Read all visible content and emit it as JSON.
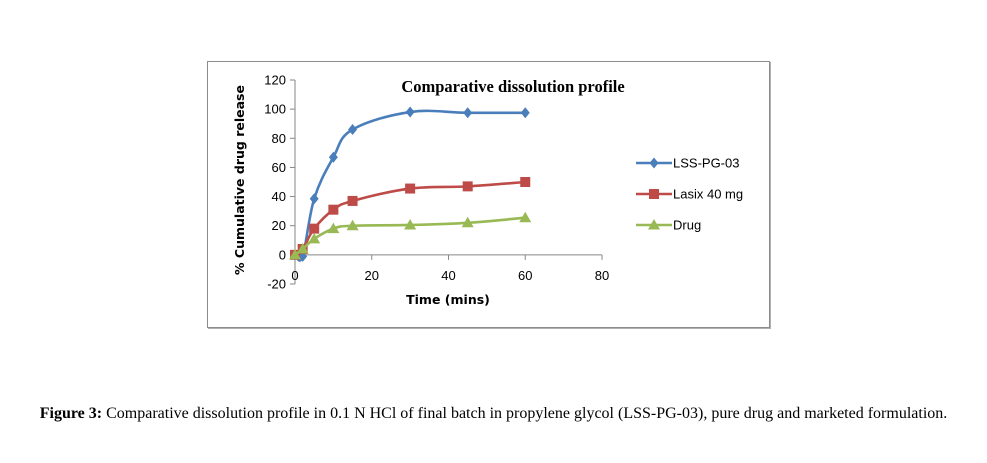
{
  "chart_data": {
    "type": "line",
    "title": "Comparative dissolution profile",
    "xlabel": "Time (mins)",
    "ylabel": "% Cumulative drug release",
    "xlim": [
      0,
      80
    ],
    "ylim": [
      -20,
      120
    ],
    "xticks": [
      0,
      20,
      40,
      60,
      80
    ],
    "yticks": [
      -20,
      0,
      20,
      40,
      60,
      80,
      100,
      120
    ],
    "grid": false,
    "legend_position": "right",
    "x": [
      0,
      2,
      5,
      10,
      15,
      30,
      45,
      60
    ],
    "series": [
      {
        "name": "LSS-PG-03",
        "color": "#4a7ebb",
        "marker": "diamond",
        "values": [
          0,
          -1,
          38.5,
          67,
          86,
          98,
          97.5,
          97.5
        ]
      },
      {
        "name": "Lasix 40 mg",
        "color": "#be4b48",
        "marker": "square",
        "values": [
          0,
          4,
          18,
          31,
          37,
          45.5,
          47,
          50
        ]
      },
      {
        "name": "Drug",
        "color": "#98b954",
        "marker": "triangle",
        "values": [
          0,
          4,
          11,
          18,
          20,
          20.5,
          22,
          25.5
        ]
      }
    ]
  },
  "caption": {
    "label": "Figure 3:",
    "text": " Comparative dissolution profile in 0.1 N HCl of final batch in propylene glycol (LSS-PG-03), pure drug and marketed formulation."
  }
}
